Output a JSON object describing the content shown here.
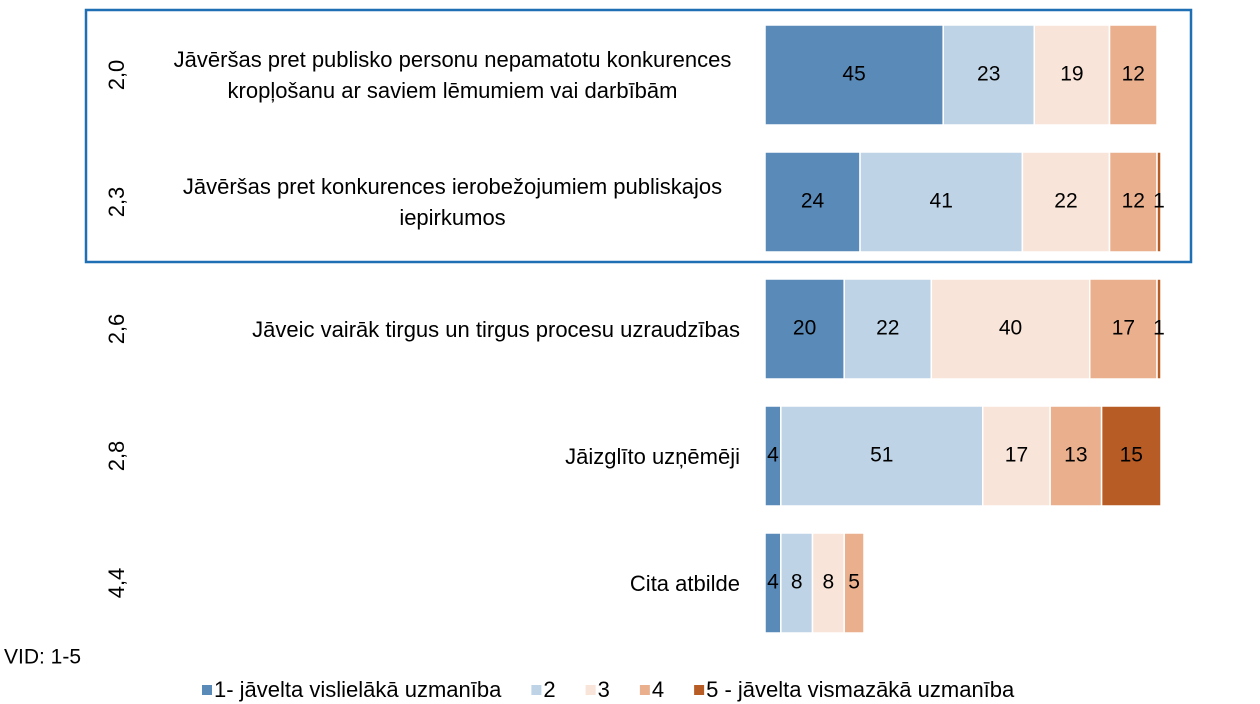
{
  "chart_data": {
    "type": "bar",
    "orientation": "horizontal",
    "stacked": true,
    "categories": [
      "Jāvēršas pret publisko personu nepamatotu konkurences kropļošanu ar saviem lēmumiem vai darbībām",
      "Jāvēršas pret konkurences ierobežojumiem publiskajos iepirkumos",
      "Jāveic vairāk tirgus un tirgus procesu uzraudzības",
      "Jāizglīto uzņēmēji",
      "Cita atbilde"
    ],
    "category_means": [
      "2,0",
      "2,3",
      "2,6",
      "2,8",
      "4,4"
    ],
    "series": [
      {
        "name": "1- jāvelta vislielākā uzmanība",
        "color": "#5a8ab8",
        "values": [
          45,
          24,
          20,
          4,
          4
        ]
      },
      {
        "name": "2",
        "color": "#bfd3e6",
        "values": [
          23,
          41,
          22,
          51,
          8
        ]
      },
      {
        "name": "3",
        "color": "#f8e4d8",
        "values": [
          19,
          22,
          40,
          17,
          8
        ]
      },
      {
        "name": "4",
        "color": "#eab08e",
        "values": [
          12,
          12,
          17,
          13,
          5
        ]
      },
      {
        "name": "5 - jāvelta vismazākā uzmanība",
        "color": "#b85c25",
        "values": [
          null,
          1,
          1,
          15,
          null
        ]
      }
    ],
    "xlim": [
      0,
      100
    ],
    "note": "VID: 1-5"
  }
}
